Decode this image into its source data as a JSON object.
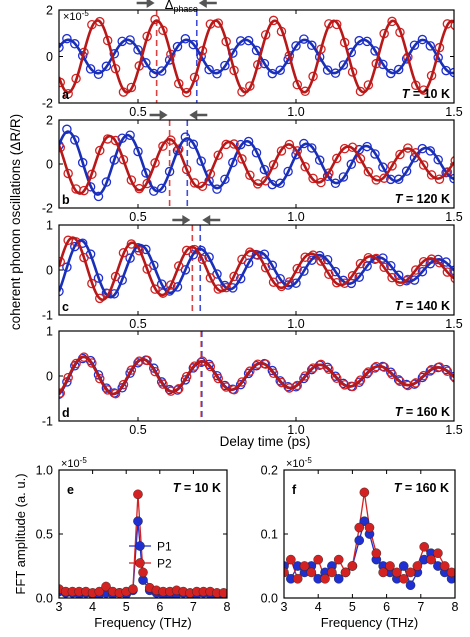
{
  "figure": {
    "ylabel_shared": "coherent phonon oscillations (ΔR/R)",
    "xlabel_time": "Delay time (ps)",
    "delta_phase_main": "Δ",
    "delta_phase_sub": "phase",
    "temp_prefix": "T",
    "colors": {
      "p1": "#1f2fd0",
      "p2": "#d42222",
      "p1_fit": "#1a2fb8",
      "p2_fit": "#b81818",
      "arrow": "#555555"
    }
  },
  "chart_data": [
    {
      "type": "line",
      "panel": "a",
      "temperature": "= 10 K",
      "multiplier": "×10",
      "multiplier_exp": "-5",
      "xlim": [
        0.25,
        1.5
      ],
      "ylim": [
        -2,
        2
      ],
      "xticks": [
        0.5,
        1.0,
        1.5
      ],
      "xtick_labels": [
        "0.5",
        "1.0",
        "1.5"
      ],
      "yticks": [
        -2,
        0,
        2
      ],
      "ytick_labels": [
        "-2",
        "0",
        "2"
      ],
      "wave": {
        "freq_thz": 5.35,
        "decay_ps": 99,
        "markers_per_ps": 40
      },
      "series": [
        {
          "name": "P1",
          "amp": 0.72,
          "phase_ps": 0.2797,
          "dashed_peak_ps": 0.686
        },
        {
          "name": "P2",
          "amp": 1.55,
          "phase_ps": 0.1853,
          "dashed_peak_ps": 0.559
        }
      ]
    },
    {
      "type": "line",
      "panel": "b",
      "temperature": "= 120 K",
      "xlim": [
        0.25,
        1.5
      ],
      "ylim": [
        -2,
        2
      ],
      "xticks": [
        0.5,
        1.0,
        1.5
      ],
      "xtick_labels": [
        "0.5",
        "1.0",
        "1.5"
      ],
      "yticks": [
        -2,
        0,
        2
      ],
      "ytick_labels": [
        "-2",
        "0",
        "2"
      ],
      "wave": {
        "freq_thz": 5.3,
        "decay_ps": 1.6,
        "markers_per_ps": 40
      },
      "series": [
        {
          "name": "P1",
          "amp": 1.5,
          "phase_ps": 0.2792,
          "dashed_peak_ps": 0.656
        },
        {
          "name": "P2",
          "amp": 1.4,
          "phase_ps": 0.2226,
          "dashed_peak_ps": 0.6
        }
      ]
    },
    {
      "type": "line",
      "panel": "c",
      "temperature": "= 140 K",
      "xlim": [
        0.25,
        1.5
      ],
      "ylim": [
        -1,
        1
      ],
      "xticks": [
        0.5,
        1.0,
        1.5
      ],
      "xtick_labels": [
        "0.5",
        "1.0",
        "1.5"
      ],
      "yticks": [
        -1,
        0,
        1
      ],
      "ytick_labels": [
        "-1",
        "0",
        "1"
      ],
      "wave": {
        "freq_thz": 5.3,
        "decay_ps": 1.1,
        "markers_per_ps": 40
      },
      "series": [
        {
          "name": "P1",
          "amp": 0.7,
          "phase_ps": 0.3196,
          "dashed_peak_ps": 0.697
        },
        {
          "name": "P2",
          "amp": 0.75,
          "phase_ps": 0.2942,
          "dashed_peak_ps": 0.672
        }
      ]
    },
    {
      "type": "line",
      "panel": "d",
      "temperature": "= 160 K",
      "xlim": [
        0.25,
        1.5
      ],
      "ylim": [
        -1,
        1
      ],
      "xticks": [
        0.5,
        1.0,
        1.5
      ],
      "xtick_labels": [
        "0.5",
        "1.0",
        "1.5"
      ],
      "yticks": [
        -1,
        0,
        1
      ],
      "ytick_labels": [
        "-1",
        "0",
        "1"
      ],
      "wave": {
        "freq_thz": 5.35,
        "decay_ps": 1.4,
        "markers_per_ps": 40
      },
      "series": [
        {
          "name": "P1",
          "amp": 0.45,
          "phase_ps": 0.33,
          "dashed_peak_ps": 0.702
        },
        {
          "name": "P2",
          "amp": 0.45,
          "phase_ps": 0.328,
          "dashed_peak_ps": 0.7
        }
      ]
    },
    {
      "type": "line",
      "panel": "e",
      "temperature": "= 10 K",
      "multiplier": "×10",
      "multiplier_exp": "-5",
      "xlabel": "Frequency (THz)",
      "ylabel": "FFT amplitude (a. u.)",
      "xlim": [
        3,
        8
      ],
      "ylim": [
        0,
        1.0
      ],
      "xticks": [
        3,
        4,
        5,
        6,
        7,
        8
      ],
      "xtick_labels": [
        "3",
        "4",
        "5",
        "6",
        "7",
        "8"
      ],
      "yticks": [
        0,
        0.5,
        1.0
      ],
      "ytick_labels": [
        "0.0",
        "0.5",
        "1.0"
      ],
      "legend": [
        "P1",
        "P2"
      ],
      "legend_position": "center-right",
      "x": [
        3.0,
        3.2,
        3.4,
        3.6,
        3.8,
        4.0,
        4.2,
        4.4,
        4.6,
        4.8,
        5.0,
        5.2,
        5.35,
        5.5,
        5.7,
        5.9,
        6.1,
        6.3,
        6.5,
        6.7,
        6.9,
        7.1,
        7.3,
        7.5,
        7.7,
        7.9
      ],
      "series": [
        {
          "name": "P1",
          "values": [
            0.05,
            0.04,
            0.04,
            0.03,
            0.04,
            0.03,
            0.03,
            0.04,
            0.03,
            0.04,
            0.03,
            0.06,
            0.6,
            0.14,
            0.06,
            0.04,
            0.03,
            0.03,
            0.03,
            0.04,
            0.03,
            0.03,
            0.04,
            0.03,
            0.03,
            0.03
          ]
        },
        {
          "name": "P2",
          "values": [
            0.07,
            0.05,
            0.05,
            0.05,
            0.05,
            0.04,
            0.05,
            0.09,
            0.05,
            0.04,
            0.05,
            0.07,
            0.81,
            0.2,
            0.08,
            0.06,
            0.05,
            0.05,
            0.06,
            0.05,
            0.04,
            0.05,
            0.05,
            0.05,
            0.04,
            0.04
          ]
        }
      ]
    },
    {
      "type": "line",
      "panel": "f",
      "temperature": "= 160 K",
      "multiplier": "×10",
      "multiplier_exp": "-5",
      "xlabel": "Frequency (THz)",
      "xlim": [
        3,
        8
      ],
      "ylim": [
        0,
        0.2
      ],
      "xticks": [
        3,
        4,
        5,
        6,
        7,
        8
      ],
      "xtick_labels": [
        "3",
        "4",
        "5",
        "6",
        "7",
        "8"
      ],
      "yticks": [
        0,
        0.1,
        0.2
      ],
      "ytick_labels": [
        "0.0",
        "0.1",
        "0.2"
      ],
      "x": [
        3.0,
        3.2,
        3.4,
        3.6,
        3.8,
        4.0,
        4.2,
        4.4,
        4.6,
        4.8,
        5.0,
        5.2,
        5.35,
        5.5,
        5.7,
        5.9,
        6.1,
        6.3,
        6.5,
        6.7,
        6.9,
        7.1,
        7.3,
        7.5,
        7.7,
        7.9
      ],
      "series": [
        {
          "name": "P1",
          "values": [
            0.05,
            0.03,
            0.05,
            0.04,
            0.05,
            0.03,
            0.04,
            0.05,
            0.03,
            0.04,
            0.05,
            0.09,
            0.12,
            0.1,
            0.06,
            0.05,
            0.04,
            0.03,
            0.05,
            0.02,
            0.04,
            0.06,
            0.07,
            0.05,
            0.04,
            0.03
          ]
        },
        {
          "name": "P2",
          "values": [
            0.04,
            0.06,
            0.03,
            0.05,
            0.04,
            0.06,
            0.03,
            0.04,
            0.06,
            0.04,
            0.05,
            0.11,
            0.165,
            0.11,
            0.07,
            0.04,
            0.05,
            0.04,
            0.03,
            0.04,
            0.05,
            0.08,
            0.06,
            0.07,
            0.05,
            0.04
          ]
        }
      ]
    }
  ]
}
